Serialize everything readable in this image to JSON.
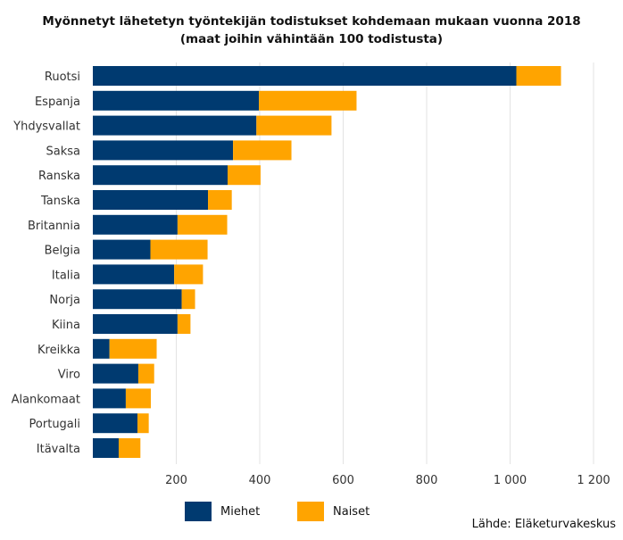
{
  "chart_data": {
    "type": "bar",
    "orientation": "horizontal",
    "stacked": true,
    "title": "Myönnetyt lähetetyn työntekijän todistukset kohdemaan mukaan vuonna 2018",
    "subtitle": "(maat joihin vähintään 100 todistusta)",
    "categories": [
      "Ruotsi",
      "Espanja",
      "Yhdysvallat",
      "Saksa",
      "Ranska",
      "Tanska",
      "Britannia",
      "Belgia",
      "Italia",
      "Norja",
      "Kiina",
      "Kreikka",
      "Viro",
      "Alankomaat",
      "Portugali",
      "Itävalta"
    ],
    "series": [
      {
        "name": "Miehet",
        "color": "#003a70",
        "values": [
          1015,
          398,
          392,
          336,
          323,
          276,
          203,
          138,
          195,
          213,
          203,
          40,
          109,
          79,
          107,
          62
        ]
      },
      {
        "name": "Naiset",
        "color": "#ffa400",
        "values": [
          107,
          234,
          180,
          140,
          79,
          57,
          119,
          137,
          69,
          32,
          31,
          113,
          38,
          60,
          27,
          52
        ]
      }
    ],
    "xlim": [
      0,
      1250
    ],
    "xticks": [
      200,
      400,
      600,
      800,
      1000,
      1200
    ],
    "xtick_labels": [
      "200",
      "400",
      "600",
      "800",
      "1 000",
      "1 200"
    ],
    "grid": true,
    "legend_position": "bottom"
  },
  "source": "Lähde: Eläketurvakeskus"
}
